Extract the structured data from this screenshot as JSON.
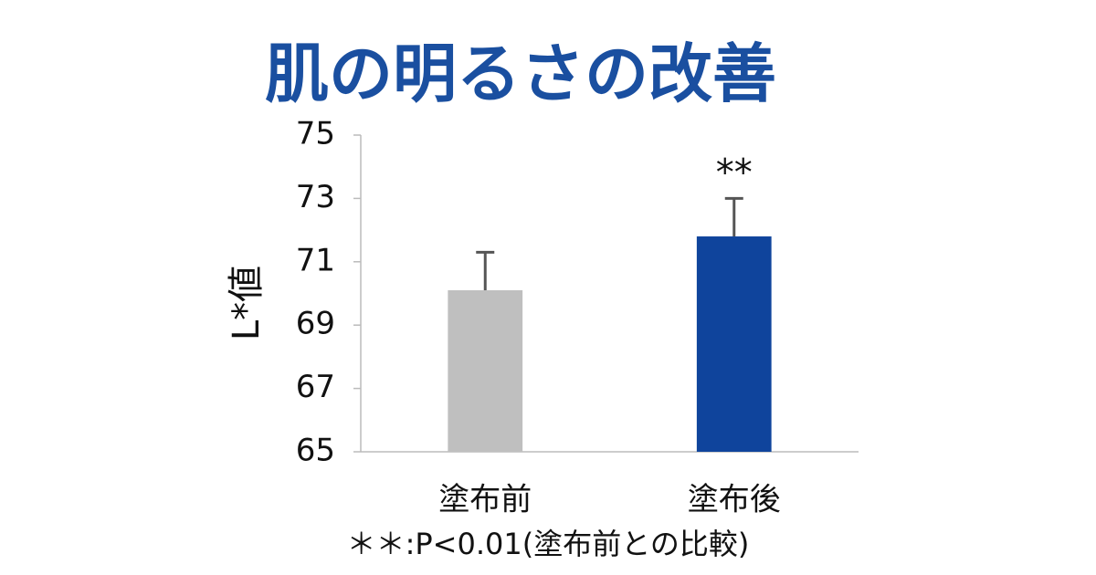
{
  "chart_data": {
    "type": "bar",
    "title": "肌の明るさの改善",
    "y_label": "L*値",
    "categories": [
      "塗布前",
      "塗布後"
    ],
    "values": [
      70.1,
      71.8
    ],
    "errors": [
      1.2,
      1.2
    ],
    "colors": [
      "#bfbfbf",
      "#0f449c"
    ],
    "ylim": [
      65,
      75
    ],
    "yticks": [
      65,
      67,
      69,
      71,
      73,
      75
    ],
    "grid": false,
    "annotation": {
      "text": "**",
      "category": "塗布後"
    },
    "footnote": "＊＊:P<0.01(塗布前との比較)"
  }
}
